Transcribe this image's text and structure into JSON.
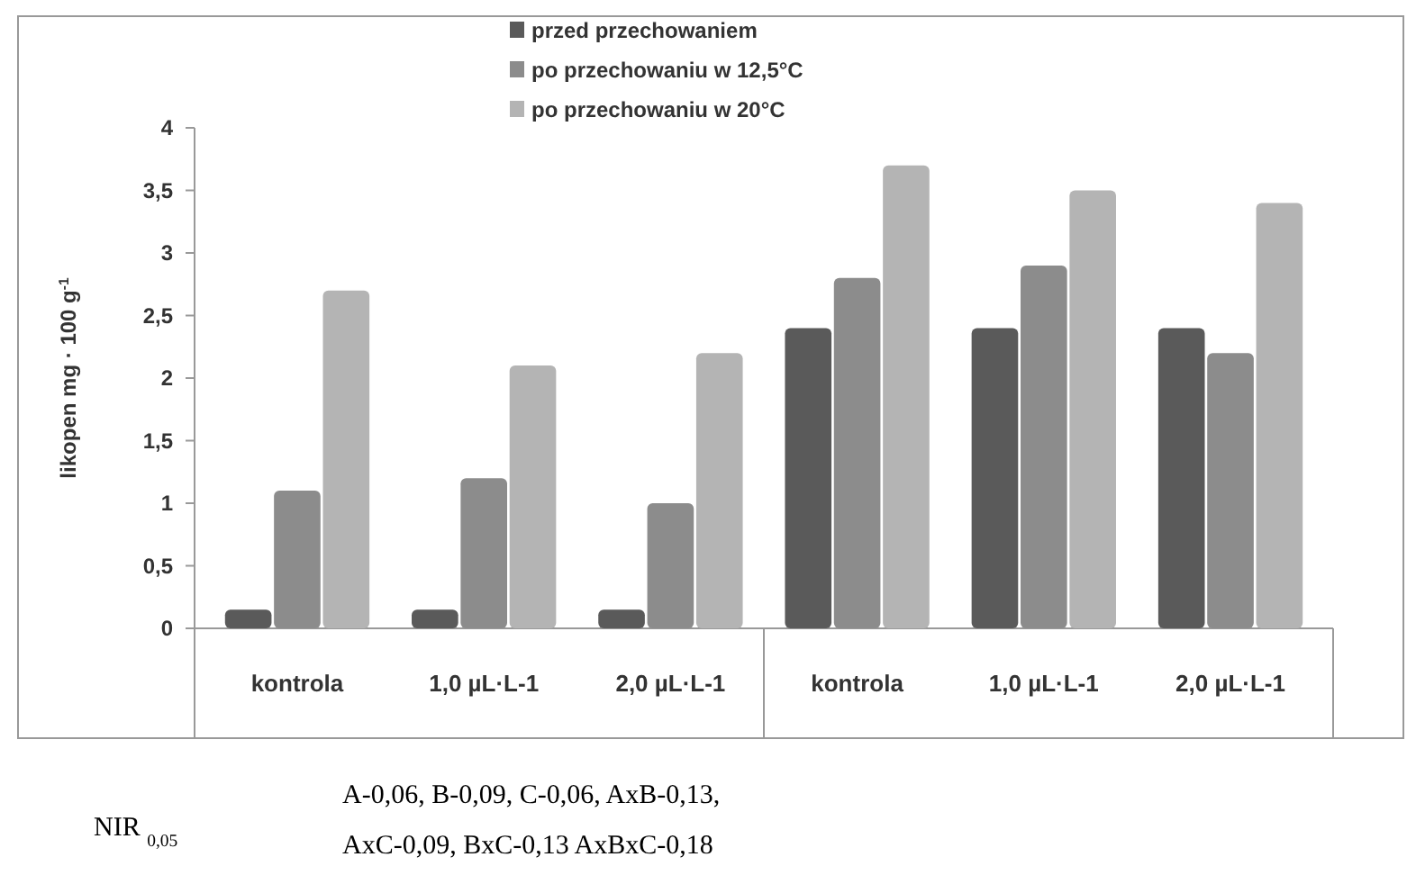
{
  "chart_data": {
    "type": "bar",
    "ylabel": "likopen mg · 100 g$^{-1}$",
    "categories": [
      "kontrola",
      "1,0 µL·L-1",
      "2,0 µL·L-1",
      "kontrola",
      "1,0 µL·L-1",
      "2,0 µL·L-1"
    ],
    "series": [
      {
        "name": "przed przechowaniem",
        "color": "#5a5a5a",
        "values": [
          0.15,
          0.15,
          0.15,
          2.4,
          2.4,
          2.4
        ]
      },
      {
        "name": "po przechowaniu w 12,5°C",
        "color": "#8c8c8c",
        "values": [
          1.1,
          1.2,
          1.0,
          2.8,
          2.9,
          2.2
        ]
      },
      {
        "name": "po przechowaniu w 20°C",
        "color": "#b4b4b4",
        "values": [
          2.7,
          2.1,
          2.2,
          3.7,
          3.5,
          3.4
        ]
      }
    ],
    "ylim": [
      0,
      4
    ],
    "yticks": [
      0,
      {
        "value": 0.5,
        "label": "0,5"
      },
      1,
      {
        "value": 1.5,
        "label": "1,5"
      },
      2,
      {
        "value": 2.5,
        "label": "2,5"
      },
      3,
      {
        "value": 3.5,
        "label": "3,5"
      },
      4
    ],
    "grid": false,
    "legend": "top",
    "annotations": [
      "NIR $_{0,05}$",
      "A-0,06, B-0,09, C-0,06, AxB-0,13,",
      "AxC-0,09, BxC-0,13 AxBxC-0,18"
    ]
  }
}
